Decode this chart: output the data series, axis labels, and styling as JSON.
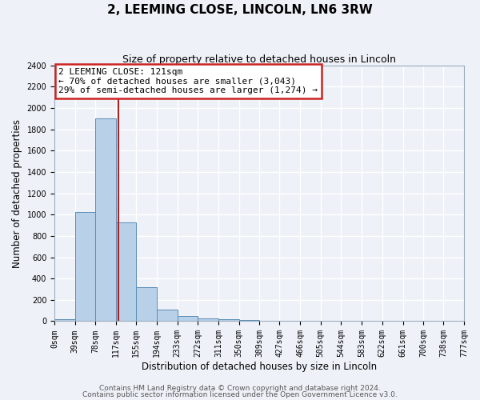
{
  "title": "2, LEEMING CLOSE, LINCOLN, LN6 3RW",
  "subtitle": "Size of property relative to detached houses in Lincoln",
  "xlabel": "Distribution of detached houses by size in Lincoln",
  "ylabel": "Number of detached properties",
  "bin_edges": [
    0,
    39,
    78,
    117,
    155,
    194,
    233,
    272,
    311,
    350,
    389,
    427,
    466,
    505,
    544,
    583,
    622,
    661,
    700,
    738,
    777
  ],
  "bin_counts": [
    20,
    1025,
    1900,
    930,
    320,
    105,
    50,
    25,
    15,
    10,
    0,
    0,
    0,
    0,
    0,
    0,
    0,
    0,
    5,
    0
  ],
  "bar_color": "#b8d0e8",
  "bar_edge_color": "#5b8db8",
  "property_line_x": 121,
  "property_line_color": "#aa2222",
  "annotation_line1": "2 LEEMING CLOSE: 121sqm",
  "annotation_line2": "← 70% of detached houses are smaller (3,043)",
  "annotation_line3": "29% of semi-detached houses are larger (1,274) →",
  "annotation_box_color": "#ffffff",
  "annotation_box_edge_color": "#cc2222",
  "ylim": [
    0,
    2400
  ],
  "yticks": [
    0,
    200,
    400,
    600,
    800,
    1000,
    1200,
    1400,
    1600,
    1800,
    2000,
    2200,
    2400
  ],
  "tick_labels": [
    "0sqm",
    "39sqm",
    "78sqm",
    "117sqm",
    "155sqm",
    "194sqm",
    "233sqm",
    "272sqm",
    "311sqm",
    "350sqm",
    "389sqm",
    "427sqm",
    "466sqm",
    "505sqm",
    "544sqm",
    "583sqm",
    "622sqm",
    "661sqm",
    "700sqm",
    "738sqm",
    "777sqm"
  ],
  "footer_line1": "Contains HM Land Registry data © Crown copyright and database right 2024.",
  "footer_line2": "Contains public sector information licensed under the Open Government Licence v3.0.",
  "bg_color": "#eef2f8",
  "plot_bg_color": "#eef2f8",
  "grid_color": "#ffffff",
  "title_fontsize": 11,
  "subtitle_fontsize": 9,
  "axis_label_fontsize": 8.5,
  "tick_fontsize": 7,
  "footer_fontsize": 6.5,
  "annot_fontsize": 8
}
